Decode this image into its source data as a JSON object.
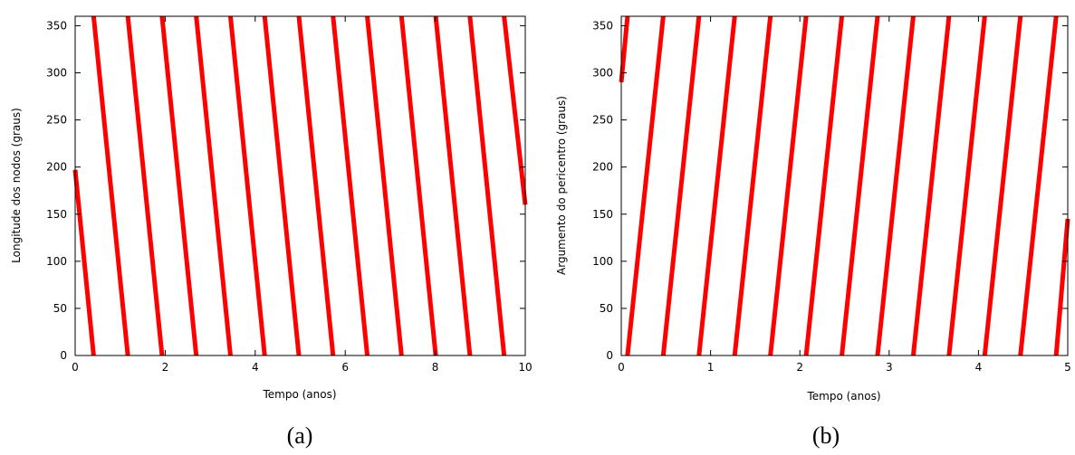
{
  "chart_data": [
    {
      "type": "line",
      "xlabel": "Tempo (anos)",
      "ylabel": "Longitude dos nodos (graus)",
      "caption": "(a)",
      "xlim": [
        0,
        10
      ],
      "ylim": [
        0,
        360
      ],
      "xticks": [
        0,
        2,
        4,
        6,
        8,
        10
      ],
      "yticks": [
        0,
        50,
        100,
        150,
        200,
        250,
        300,
        350
      ],
      "grid": false,
      "series": [
        {
          "color": "#ff0000",
          "segments": [
            {
              "x": [
                0.0,
                0.41
              ],
              "y": [
                197,
                0
              ]
            },
            {
              "x": [
                0.41,
                1.17
              ],
              "y": [
                360,
                0
              ]
            },
            {
              "x": [
                1.17,
                1.93
              ],
              "y": [
                360,
                0
              ]
            },
            {
              "x": [
                1.93,
                2.69
              ],
              "y": [
                360,
                0
              ]
            },
            {
              "x": [
                2.69,
                3.45
              ],
              "y": [
                360,
                0
              ]
            },
            {
              "x": [
                3.45,
                4.21
              ],
              "y": [
                360,
                0
              ]
            },
            {
              "x": [
                4.21,
                4.97
              ],
              "y": [
                360,
                0
              ]
            },
            {
              "x": [
                4.97,
                5.73
              ],
              "y": [
                360,
                0
              ]
            },
            {
              "x": [
                5.73,
                6.49
              ],
              "y": [
                360,
                0
              ]
            },
            {
              "x": [
                6.49,
                7.25
              ],
              "y": [
                360,
                0
              ]
            },
            {
              "x": [
                7.25,
                8.01
              ],
              "y": [
                360,
                0
              ]
            },
            {
              "x": [
                8.01,
                8.77
              ],
              "y": [
                360,
                0
              ]
            },
            {
              "x": [
                8.77,
                9.53
              ],
              "y": [
                360,
                0
              ]
            },
            {
              "x": [
                9.53,
                10.0
              ],
              "y": [
                360,
                160
              ]
            }
          ]
        }
      ]
    },
    {
      "type": "line",
      "xlabel": "Tempo (anos)",
      "ylabel": "Argumento do pericentro (graus)",
      "caption": "(b)",
      "xlim": [
        0,
        5
      ],
      "ylim": [
        0,
        360
      ],
      "xticks": [
        0,
        1,
        2,
        3,
        4,
        5
      ],
      "yticks": [
        0,
        50,
        100,
        150,
        200,
        250,
        300,
        350
      ],
      "grid": false,
      "series": [
        {
          "color": "#ff0000",
          "segments": [
            {
              "x": [
                0.0,
                0.07
              ],
              "y": [
                290,
                360
              ]
            },
            {
              "x": [
                0.07,
                0.47
              ],
              "y": [
                0,
                360
              ]
            },
            {
              "x": [
                0.47,
                0.87
              ],
              "y": [
                0,
                360
              ]
            },
            {
              "x": [
                0.87,
                1.27
              ],
              "y": [
                0,
                360
              ]
            },
            {
              "x": [
                1.27,
                1.67
              ],
              "y": [
                0,
                360
              ]
            },
            {
              "x": [
                1.67,
                2.07
              ],
              "y": [
                0,
                360
              ]
            },
            {
              "x": [
                2.07,
                2.47
              ],
              "y": [
                0,
                360
              ]
            },
            {
              "x": [
                2.47,
                2.87
              ],
              "y": [
                0,
                360
              ]
            },
            {
              "x": [
                2.87,
                3.27
              ],
              "y": [
                0,
                360
              ]
            },
            {
              "x": [
                3.27,
                3.67
              ],
              "y": [
                0,
                360
              ]
            },
            {
              "x": [
                3.67,
                4.07
              ],
              "y": [
                0,
                360
              ]
            },
            {
              "x": [
                4.07,
                4.47
              ],
              "y": [
                0,
                360
              ]
            },
            {
              "x": [
                4.47,
                4.87
              ],
              "y": [
                0,
                360
              ]
            },
            {
              "x": [
                4.87,
                5.0
              ],
              "y": [
                0,
                145
              ]
            }
          ]
        }
      ]
    }
  ]
}
